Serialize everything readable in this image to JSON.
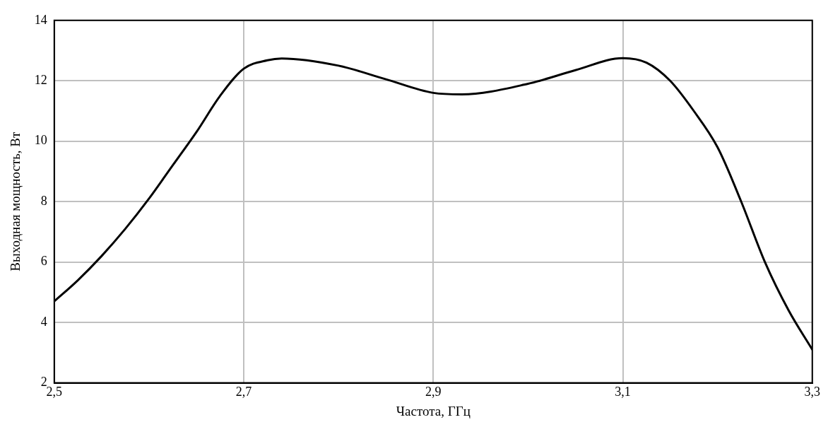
{
  "chart_data": {
    "type": "line",
    "xlabel": "Частота, ГГц",
    "ylabel": "Выходная мощность, Вт",
    "x": [
      2.5,
      2.525,
      2.55,
      2.575,
      2.6,
      2.625,
      2.65,
      2.675,
      2.7,
      2.725,
      2.74,
      2.8,
      2.85,
      2.9,
      2.93,
      3.0,
      3.05,
      3.1,
      3.125,
      3.15,
      3.175,
      3.2,
      3.225,
      3.25,
      3.275,
      3.3
    ],
    "series": [
      {
        "color": "#000000",
        "values": [
          4.7,
          5.4,
          6.2,
          7.1,
          8.1,
          9.2,
          10.3,
          11.5,
          12.4,
          12.68,
          12.74,
          12.5,
          12.05,
          11.6,
          11.55,
          11.9,
          12.35,
          12.75,
          12.6,
          12.0,
          11.0,
          9.8,
          8.0,
          6.0,
          4.4,
          3.1
        ]
      }
    ],
    "xlim": [
      2.5,
      3.3
    ],
    "xticks": [
      {
        "value": 2.5,
        "label": "2,5"
      },
      {
        "value": 2.7,
        "label": "2,7"
      },
      {
        "value": 2.9,
        "label": "2,9"
      },
      {
        "value": 3.1,
        "label": "3,1"
      },
      {
        "value": 3.3,
        "label": "3,3"
      }
    ],
    "ylim": [
      2,
      14
    ],
    "yticks": [
      2,
      4,
      6,
      8,
      10,
      12,
      14
    ],
    "grid": true,
    "legend": false,
    "marker": "none",
    "line_style": "solid"
  }
}
